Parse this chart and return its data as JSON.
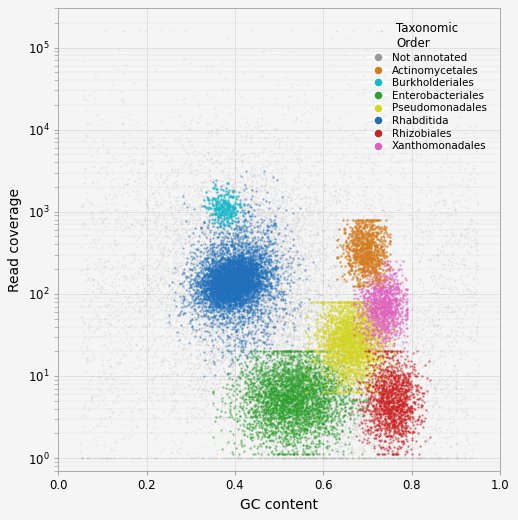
{
  "xlabel": "GC content",
  "ylabel": "Read coverage",
  "xlim": [
    0.0,
    1.0
  ],
  "ylim_log": [
    0.7,
    300000
  ],
  "yticks": [
    1,
    10,
    100,
    1000,
    10000,
    100000
  ],
  "xticks": [
    0.0,
    0.2,
    0.4,
    0.6,
    0.8,
    1.0
  ],
  "legend_title": "Taxonomic\nOrder",
  "background_color": "#f5f5f5",
  "grid_color": "#dddddd",
  "colors": {
    "Not annotated": "#999999",
    "Rhabditida": "#1f6fba",
    "Enterobacteriales": "#2ca02c",
    "Pseudomonadales": "#d4d422",
    "Burkholderiales": "#17b8c8",
    "Actinomycetales": "#d47c20",
    "Rhizobiales": "#cc2222",
    "Xanthomonadales": "#e060c0"
  },
  "legend_colors": {
    "Not annotated": "#999999",
    "Actinomycetales": "#d47c20",
    "Burkholderiales": "#17b8c8",
    "Enterobacteriales": "#2ca02c",
    "Pseudomonadales": "#d4d422",
    "Rhabditida": "#1f6fba",
    "Rhizobiales": "#cc2222",
    "Xanthomonadales": "#e060c0"
  },
  "seed": 42
}
